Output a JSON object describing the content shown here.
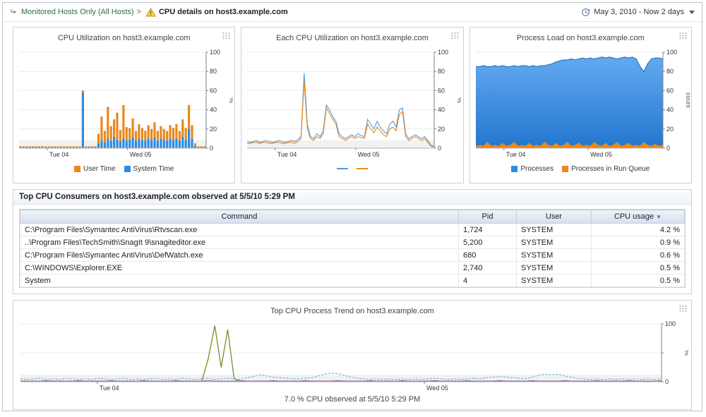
{
  "header": {
    "breadcrumb": "Monitored Hosts Only (All Hosts)",
    "separator": ">",
    "title": "CPU details on host3.example.com",
    "time_range": "May 3, 2010 - Now 2 days"
  },
  "chart_data": [
    {
      "type": "bar",
      "title": "CPU Utilization on host3.example.com",
      "ylabel": "%",
      "ylim": [
        0,
        100
      ],
      "shade_below": 8,
      "yticks": [
        {
          "v": 0,
          "label": "0"
        },
        {
          "v": 20,
          "label": "20"
        },
        {
          "v": 40,
          "label": "40"
        },
        {
          "v": 60,
          "label": "60"
        },
        {
          "v": 80,
          "label": "80"
        },
        {
          "v": 100,
          "label": "100"
        }
      ],
      "xticks": [
        {
          "p": 0.15,
          "label": "Tue 04"
        },
        {
          "p": 0.58,
          "label": "Wed 05"
        }
      ],
      "series": [
        {
          "name": "System Time",
          "color": "#2d8ce0",
          "values": [
            1,
            1,
            1,
            1,
            1,
            1,
            1,
            1,
            1,
            1,
            1,
            1,
            1,
            1,
            1,
            1,
            1,
            1,
            1,
            1,
            58,
            1,
            1,
            1,
            1,
            5,
            8,
            6,
            10,
            8,
            12,
            9,
            7,
            10,
            8,
            9,
            11,
            8,
            10,
            9,
            8,
            10,
            9,
            11,
            8,
            10,
            9,
            8,
            10,
            9,
            10,
            8,
            12,
            9,
            20,
            10,
            2,
            1,
            1,
            1
          ]
        },
        {
          "name": "User Time",
          "color": "#e8891d",
          "values": [
            1,
            1,
            1,
            1,
            1,
            1,
            1,
            1,
            1,
            1,
            1,
            1,
            1,
            1,
            1,
            1,
            1,
            1,
            1,
            1,
            2,
            1,
            1,
            1,
            1,
            10,
            25,
            12,
            33,
            15,
            18,
            28,
            12,
            35,
            14,
            12,
            20,
            10,
            15,
            12,
            10,
            14,
            11,
            16,
            10,
            13,
            11,
            10,
            14,
            12,
            15,
            10,
            18,
            12,
            25,
            14,
            3,
            1,
            1,
            1
          ]
        }
      ],
      "legend": [
        {
          "label": "User Time",
          "color": "#e8891d",
          "shape": "box"
        },
        {
          "label": "System Time",
          "color": "#2d8ce0",
          "shape": "box"
        }
      ]
    },
    {
      "type": "line",
      "title": "Each CPU Utilization on host3.example.com",
      "ylabel": "%",
      "ylim": [
        0,
        100
      ],
      "shade_below": 8,
      "yticks": [
        {
          "v": 0,
          "label": "0"
        },
        {
          "v": 20,
          "label": "20"
        },
        {
          "v": 40,
          "label": "40"
        },
        {
          "v": 60,
          "label": "60"
        },
        {
          "v": 80,
          "label": "80"
        },
        {
          "v": 100,
          "label": "100"
        }
      ],
      "xticks": [
        {
          "p": 0.15,
          "label": "Tue 04"
        },
        {
          "p": 0.58,
          "label": "Wed 05"
        }
      ],
      "series": [
        {
          "color": "#5599dd",
          "values": [
            7,
            6,
            7,
            8,
            6,
            7,
            8,
            7,
            6,
            7,
            8,
            7,
            6,
            7,
            8,
            7,
            9,
            12,
            78,
            25,
            12,
            10,
            15,
            12,
            18,
            45,
            40,
            33,
            28,
            15,
            12,
            10,
            12,
            14,
            12,
            15,
            13,
            12,
            30,
            25,
            20,
            28,
            22,
            18,
            15,
            25,
            28,
            22,
            40,
            42,
            15,
            10,
            12,
            14,
            12,
            10,
            12,
            8,
            3,
            2
          ]
        },
        {
          "color": "#e8891d",
          "values": [
            5,
            5,
            6,
            6,
            5,
            6,
            6,
            5,
            5,
            6,
            6,
            5,
            5,
            6,
            6,
            5,
            7,
            10,
            70,
            20,
            10,
            8,
            12,
            10,
            15,
            42,
            36,
            30,
            25,
            12,
            10,
            8,
            10,
            12,
            10,
            12,
            11,
            10,
            25,
            20,
            16,
            22,
            18,
            14,
            12,
            20,
            22,
            18,
            35,
            38,
            12,
            8,
            10,
            12,
            10,
            8,
            10,
            6,
            2,
            1
          ]
        }
      ],
      "legend": [
        {
          "label": "",
          "color": "#5599dd",
          "shape": "line"
        },
        {
          "label": "",
          "color": "#e8891d",
          "shape": "line"
        }
      ]
    },
    {
      "type": "line",
      "title": "Process Load on host3.example.com",
      "ylabel": "count",
      "ylim": [
        0,
        100
      ],
      "yticks": [
        {
          "v": 0,
          "label": "0"
        },
        {
          "v": 20,
          "label": "20"
        },
        {
          "v": 40,
          "label": "40"
        },
        {
          "v": 60,
          "label": "60"
        },
        {
          "v": 80,
          "label": "80"
        },
        {
          "v": 100,
          "label": "100"
        }
      ],
      "xticks": [
        {
          "p": 0.15,
          "label": "Tue 04"
        },
        {
          "p": 0.6,
          "label": "Wed 05"
        }
      ],
      "series": [
        {
          "color": "#1f71c8",
          "area": true,
          "gradient": [
            "#63a9f0",
            "#2276cf"
          ],
          "values": [
            85,
            85,
            86,
            85,
            85,
            86,
            85,
            86,
            85,
            85,
            86,
            85,
            86,
            86,
            85,
            86,
            85,
            86,
            86,
            87,
            88,
            90,
            91,
            92,
            92,
            93,
            92,
            93,
            94,
            93,
            94,
            93,
            94,
            95,
            94,
            95,
            94,
            93,
            94,
            95,
            94,
            95,
            93,
            85,
            80,
            88,
            93,
            94,
            94,
            93
          ]
        },
        {
          "color": "#e8891d",
          "area": true,
          "values": [
            2,
            3,
            2,
            6,
            2,
            3,
            2,
            5,
            2,
            3,
            6,
            2,
            3,
            2,
            5,
            2,
            3,
            2,
            6,
            3,
            2,
            5,
            2,
            3,
            6,
            2,
            3,
            5,
            2,
            3,
            2,
            6,
            3,
            2,
            5,
            2,
            3,
            6,
            2,
            3,
            5,
            2,
            3,
            2,
            6,
            3,
            2,
            4,
            2,
            3
          ]
        }
      ],
      "legend": [
        {
          "label": "Processes",
          "color": "#2d8ce0",
          "shape": "box"
        },
        {
          "label": "Processes in Run Queue",
          "color": "#e8891d",
          "shape": "box"
        }
      ]
    },
    {
      "type": "line",
      "title": "Top CPU Process Trend on host3.example.com",
      "caption": "7.0 % CPU observed at 5/5/10 5:29 PM",
      "ylabel": "%",
      "ylim": [
        0,
        100
      ],
      "shade_below": 12,
      "yticks": [
        {
          "v": 0,
          "label": "0"
        },
        {
          "v": 50,
          "label": ""
        },
        {
          "v": 100,
          "label": "100"
        }
      ],
      "xticks": [
        {
          "p": 0.12,
          "label": "Tue 04"
        },
        {
          "p": 0.63,
          "label": "Wed 05"
        }
      ],
      "series": [
        {
          "color": "#7a8b2a",
          "width": 1.3,
          "values": [
            1,
            1,
            1,
            1,
            1,
            1,
            1,
            1,
            1,
            1,
            1,
            1,
            1,
            1,
            1,
            1,
            1,
            1,
            1,
            1,
            1,
            1,
            1,
            1,
            1,
            1,
            1,
            1,
            1,
            40,
            97,
            25,
            90,
            5,
            1,
            1,
            1,
            1,
            1,
            1,
            1,
            1,
            1,
            1,
            1,
            1,
            1,
            1,
            1,
            1,
            1,
            1,
            1,
            1,
            1,
            1,
            1,
            1,
            1,
            1,
            1,
            1,
            1,
            1,
            1,
            1,
            1,
            1,
            1,
            1,
            1,
            1,
            1,
            1,
            1,
            1,
            1,
            1,
            1,
            1,
            1,
            1,
            1,
            1,
            1,
            1,
            1,
            1,
            1,
            1,
            1,
            1,
            1,
            1,
            1,
            1,
            1,
            1,
            1,
            1
          ]
        },
        {
          "color": "#57b8d8",
          "dash": true,
          "values": [
            5,
            4,
            5,
            6,
            4,
            5,
            4,
            6,
            5,
            4,
            5,
            4,
            6,
            5,
            4,
            5,
            6,
            4,
            5,
            4,
            5,
            6,
            4,
            5,
            4,
            6,
            5,
            4,
            5,
            6,
            4,
            5,
            6,
            5,
            4,
            7,
            9,
            12,
            10,
            8,
            7,
            6,
            5,
            5,
            6,
            7,
            10,
            13,
            15,
            14,
            11,
            8,
            6,
            5,
            4,
            5,
            4,
            5,
            4,
            5,
            4,
            5,
            4,
            5,
            6,
            5,
            4,
            5,
            4,
            5,
            6,
            5,
            7,
            8,
            9,
            8,
            7,
            6,
            5,
            8,
            11,
            13,
            12,
            13,
            10,
            8,
            6,
            5,
            4,
            5,
            4,
            5,
            4,
            5,
            4,
            5,
            4,
            5,
            4,
            5
          ]
        },
        {
          "color": "#8a5fb0",
          "values": [
            1,
            1,
            1,
            1,
            2,
            1,
            1,
            1,
            1,
            2,
            1,
            1,
            1,
            1,
            2,
            1,
            1,
            1,
            1,
            2,
            1,
            1,
            1,
            1,
            2,
            1,
            1,
            1,
            1,
            2,
            1,
            1,
            1,
            1,
            2,
            1,
            1,
            1,
            1,
            2,
            1,
            1,
            1,
            1,
            2,
            1,
            1,
            1,
            1,
            2,
            1,
            1,
            1,
            1,
            2,
            1,
            1,
            1,
            1,
            2,
            1,
            1,
            1,
            1,
            2,
            1,
            1,
            1,
            1,
            2,
            1,
            1,
            1,
            1,
            2,
            1,
            1,
            1,
            1,
            2,
            1,
            1,
            1,
            1,
            2,
            1,
            1,
            1,
            1,
            2,
            1,
            1,
            1,
            1,
            2,
            1,
            1,
            1,
            1,
            2
          ]
        }
      ]
    }
  ],
  "consumers": {
    "title": "Top CPU Consumers on host3.example.com observed at 5/5/10 5:29 PM",
    "columns": [
      "Command",
      "Pid",
      "User",
      "CPU usage"
    ],
    "sort_indicator": "▼",
    "rows": [
      {
        "command": "C:\\Program Files\\Symantec AntiVirus\\Rtvscan.exe",
        "pid": "1,724",
        "user": "SYSTEM",
        "cpu": "4.2 %"
      },
      {
        "command": "..\\Program Files\\TechSmith\\SnagIt 9\\snagiteditor.exe",
        "pid": "5,200",
        "user": "SYSTEM",
        "cpu": "0.9 %"
      },
      {
        "command": "C:\\Program Files\\Symantec AntiVirus\\DefWatch.exe",
        "pid": "680",
        "user": "SYSTEM",
        "cpu": "0.6 %"
      },
      {
        "command": "C:\\WINDOWS\\Explorer.EXE",
        "pid": "2,740",
        "user": "SYSTEM",
        "cpu": "0.5 %"
      },
      {
        "command": "System",
        "pid": "4",
        "user": "SYSTEM",
        "cpu": "0.5 %"
      }
    ]
  }
}
